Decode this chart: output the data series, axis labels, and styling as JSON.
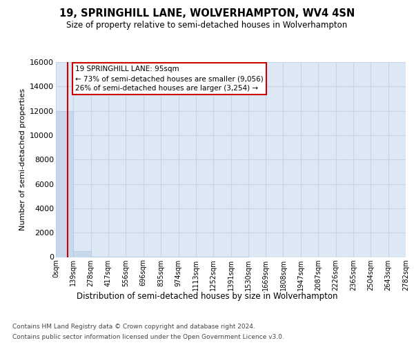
{
  "title": "19, SPRINGHILL LANE, WOLVERHAMPTON, WV4 4SN",
  "subtitle": "Size of property relative to semi-detached houses in Wolverhampton",
  "xlabel": "Distribution of semi-detached houses by size in Wolverhampton",
  "ylabel": "Number of semi-detached properties",
  "footer_line1": "Contains HM Land Registry data © Crown copyright and database right 2024.",
  "footer_line2": "Contains public sector information licensed under the Open Government Licence v3.0.",
  "annotation_text_line1": "19 SPRINGHILL LANE: 95sqm",
  "annotation_text_line2": "← 73% of semi-detached houses are smaller (9,056)",
  "annotation_text_line3": "26% of semi-detached houses are larger (3,254) →",
  "bin_edges": [
    0,
    139,
    278,
    417,
    556,
    696,
    835,
    974,
    1113,
    1252,
    1391,
    1530,
    1669,
    1808,
    1947,
    2087,
    2226,
    2365,
    2504,
    2643,
    2782
  ],
  "bin_counts": [
    12000,
    490,
    30,
    15,
    8,
    5,
    3,
    2,
    1,
    1,
    1,
    0,
    0,
    0,
    0,
    0,
    0,
    0,
    0,
    0
  ],
  "bar_color": "#c8d8ec",
  "bar_edge_color": "#b0c4de",
  "vline_color": "#cc0000",
  "vline_x": 95,
  "annotation_box_facecolor": "#ffffff",
  "annotation_box_edgecolor": "#cc0000",
  "grid_color": "#c8d4e4",
  "bg_color": "#dce8f4",
  "ylim": [
    0,
    16000
  ],
  "yticks": [
    0,
    2000,
    4000,
    6000,
    8000,
    10000,
    12000,
    14000,
    16000
  ],
  "tick_labels": [
    "0sqm",
    "139sqm",
    "278sqm",
    "417sqm",
    "556sqm",
    "696sqm",
    "835sqm",
    "974sqm",
    "1113sqm",
    "1252sqm",
    "1391sqm",
    "1530sqm",
    "1669sqm",
    "1808sqm",
    "1947sqm",
    "2087sqm",
    "2226sqm",
    "2365sqm",
    "2504sqm",
    "2643sqm",
    "2782sqm"
  ]
}
